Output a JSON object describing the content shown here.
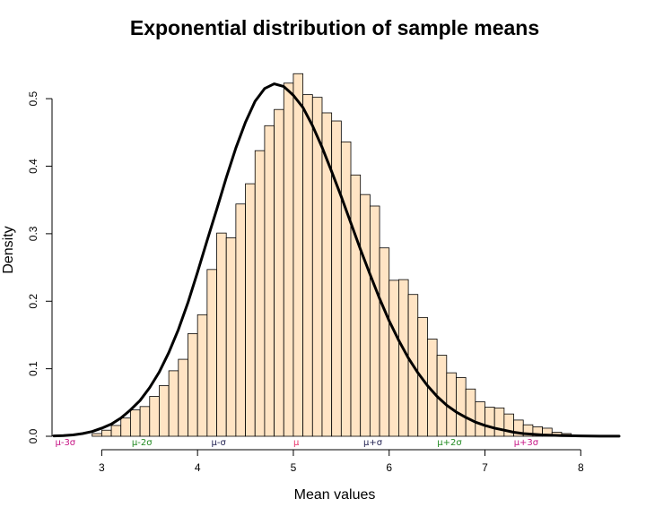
{
  "chart_data": {
    "type": "bar",
    "title": "Exponential distribution of sample means",
    "xlabel": "Mean values",
    "ylabel": "Density",
    "xlim": [
      2.5,
      8.4
    ],
    "ylim": [
      0,
      0.54
    ],
    "x_ticks": [
      "3",
      "4",
      "5",
      "6",
      "7",
      "8"
    ],
    "y_ticks": [
      "0.0",
      "0.1",
      "0.2",
      "0.3",
      "0.4",
      "0.5"
    ],
    "histogram": {
      "bin_start": 2.9,
      "bin_width": 0.1,
      "fill_color": "#FFE4C4",
      "edge_color": "#000000",
      "densities": [
        0.004,
        0.009,
        0.016,
        0.027,
        0.039,
        0.044,
        0.059,
        0.075,
        0.097,
        0.114,
        0.152,
        0.18,
        0.247,
        0.301,
        0.294,
        0.344,
        0.374,
        0.423,
        0.46,
        0.484,
        0.523,
        0.537,
        0.506,
        0.502,
        0.479,
        0.467,
        0.436,
        0.387,
        0.358,
        0.341,
        0.279,
        0.231,
        0.232,
        0.21,
        0.176,
        0.144,
        0.12,
        0.094,
        0.087,
        0.07,
        0.051,
        0.043,
        0.042,
        0.033,
        0.024,
        0.017,
        0.014,
        0.012,
        0.006,
        0.004
      ]
    },
    "density_curve": {
      "color": "#000000",
      "x": [
        2.5,
        2.6,
        2.7,
        2.8,
        2.9,
        3.0,
        3.1,
        3.2,
        3.3,
        3.4,
        3.5,
        3.6,
        3.7,
        3.8,
        3.9,
        4.0,
        4.1,
        4.2,
        4.3,
        4.4,
        4.5,
        4.6,
        4.7,
        4.8,
        4.9,
        5.0,
        5.1,
        5.2,
        5.3,
        5.4,
        5.5,
        5.6,
        5.7,
        5.8,
        5.9,
        6.0,
        6.1,
        6.2,
        6.3,
        6.4,
        6.5,
        6.6,
        6.7,
        6.8,
        6.9,
        7.0,
        7.1,
        7.2,
        7.3,
        7.4,
        7.5,
        7.6,
        7.8,
        8.0,
        8.2,
        8.4
      ],
      "y": [
        0.0005,
        0.001,
        0.002,
        0.004,
        0.007,
        0.012,
        0.018,
        0.027,
        0.039,
        0.053,
        0.072,
        0.095,
        0.124,
        0.158,
        0.198,
        0.243,
        0.29,
        0.336,
        0.383,
        0.427,
        0.465,
        0.496,
        0.515,
        0.522,
        0.518,
        0.505,
        0.487,
        0.46,
        0.428,
        0.392,
        0.355,
        0.316,
        0.277,
        0.24,
        0.204,
        0.171,
        0.142,
        0.116,
        0.094,
        0.075,
        0.059,
        0.046,
        0.036,
        0.028,
        0.021,
        0.016,
        0.012,
        0.009,
        0.006,
        0.004,
        0.003,
        0.002,
        0.001,
        0.0005,
        0.0002,
        0.0001
      ]
    },
    "sigma_markers": [
      {
        "label": "μ-3σ",
        "x": 2.62,
        "color": "#C71585"
      },
      {
        "label": "μ-2σ",
        "x": 3.42,
        "color": "#228B22"
      },
      {
        "label": "μ-σ",
        "x": 4.22,
        "color": "#1F1F50"
      },
      {
        "label": "μ",
        "x": 5.03,
        "color": "#E8336A"
      },
      {
        "label": "μ+σ",
        "x": 5.83,
        "color": "#1F1F50"
      },
      {
        "label": "μ+2σ",
        "x": 6.63,
        "color": "#228B22"
      },
      {
        "label": "μ+3σ",
        "x": 7.43,
        "color": "#C71585"
      }
    ],
    "grid": false,
    "legend": "none"
  }
}
